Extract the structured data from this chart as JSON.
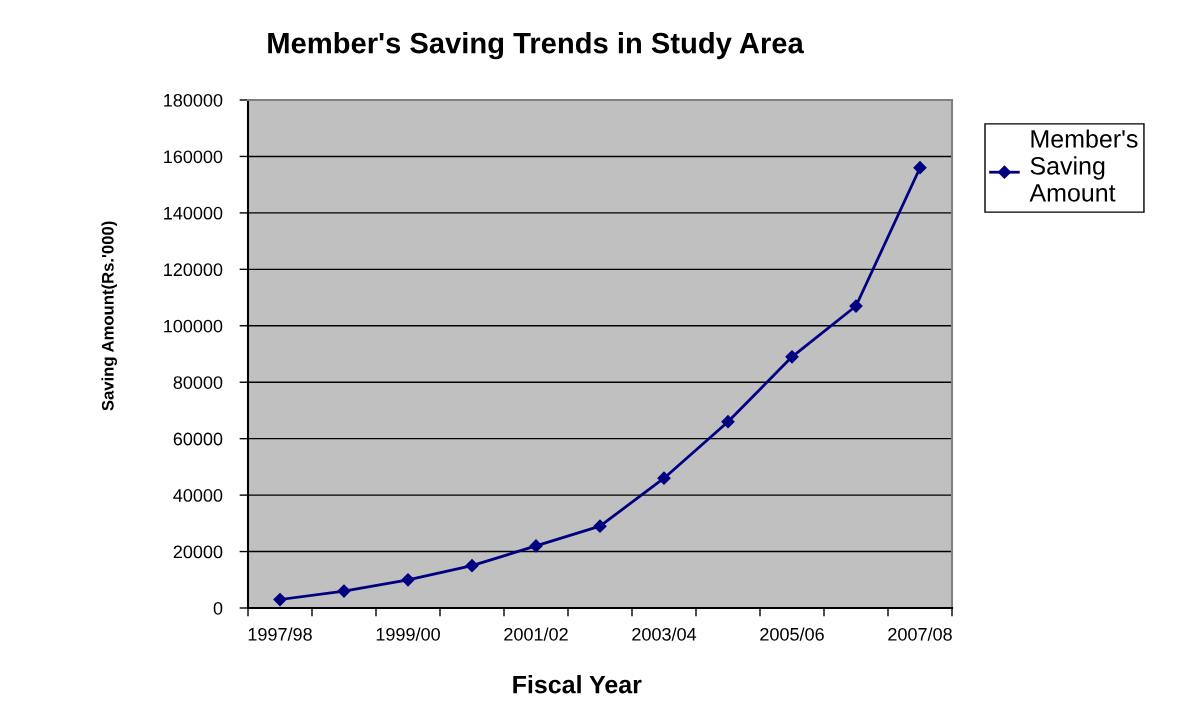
{
  "chart_data": {
    "type": "line",
    "title": "Member's Saving Trends in Study Area",
    "xlabel": "Fiscal Year",
    "ylabel": "Saving Amount(Rs.'000)",
    "categories": [
      "1997/98",
      null,
      "1999/00",
      null,
      "2001/02",
      null,
      "2003/04",
      null,
      "2005/06",
      null,
      "2007/08"
    ],
    "series": [
      {
        "name": "Member's Saving Amount",
        "color": "#000080",
        "values": [
          3000,
          6000,
          10000,
          15000,
          22000,
          29000,
          46000,
          66000,
          89000,
          107000,
          156000
        ]
      }
    ],
    "ylim": [
      0,
      180000
    ],
    "yticks": [
      0,
      20000,
      40000,
      60000,
      80000,
      100000,
      120000,
      140000,
      160000,
      180000
    ],
    "grid": "y",
    "legend": "right",
    "marker": "diamond",
    "line_style": "solid"
  }
}
